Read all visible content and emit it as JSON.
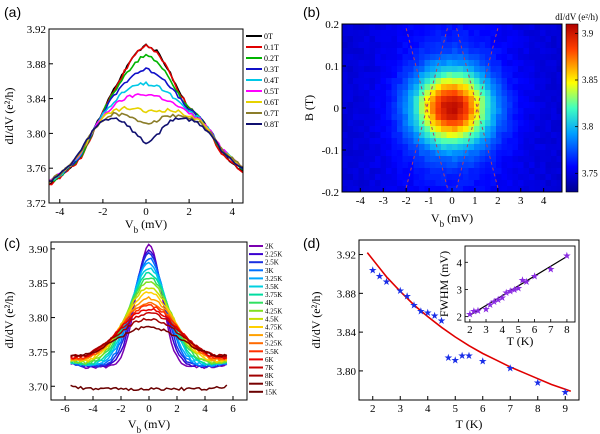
{
  "chart_data": [
    {
      "panel_label": "(a)",
      "type": "line",
      "xlabel_main": "V",
      "xlabel_sub": "b",
      "xlabel_unit": " (mV)",
      "ylabel": "dI/dV (e²/h)",
      "xlim": [
        -4.5,
        4.5
      ],
      "ylim": [
        3.72,
        3.92
      ],
      "xticks": [
        "-4",
        "-2",
        "0",
        "2",
        "4"
      ],
      "yticks": [
        "3.72",
        "3.76",
        "3.80",
        "3.84",
        "3.88",
        "3.92"
      ],
      "x": [
        -4.5,
        -4.0,
        -3.5,
        -3.0,
        -2.5,
        -2.0,
        -1.5,
        -1.0,
        -0.5,
        0.0,
        0.5,
        1.0,
        1.5,
        2.0,
        2.5,
        3.0,
        3.5,
        4.0,
        4.5
      ],
      "series": [
        {
          "name": "0T",
          "color": "#000000",
          "values": [
            3.742,
            3.75,
            3.761,
            3.773,
            3.8,
            3.826,
            3.85,
            3.872,
            3.892,
            3.903,
            3.894,
            3.875,
            3.85,
            3.829,
            3.818,
            3.8,
            3.778,
            3.767,
            3.756
          ]
        },
        {
          "name": "0.1T",
          "color": "#e00000",
          "values": [
            3.741,
            3.749,
            3.76,
            3.772,
            3.799,
            3.825,
            3.849,
            3.871,
            3.891,
            3.902,
            3.893,
            3.874,
            3.849,
            3.828,
            3.817,
            3.799,
            3.777,
            3.766,
            3.755
          ]
        },
        {
          "name": "0.2T",
          "color": "#00b400",
          "values": [
            3.743,
            3.751,
            3.762,
            3.774,
            3.8,
            3.825,
            3.847,
            3.866,
            3.882,
            3.89,
            3.883,
            3.867,
            3.846,
            3.828,
            3.818,
            3.801,
            3.78,
            3.769,
            3.758
          ]
        },
        {
          "name": "0.3T",
          "color": "#1010c8",
          "values": [
            3.744,
            3.752,
            3.763,
            3.776,
            3.801,
            3.824,
            3.843,
            3.858,
            3.869,
            3.874,
            3.869,
            3.858,
            3.842,
            3.827,
            3.818,
            3.802,
            3.781,
            3.77,
            3.759
          ]
        },
        {
          "name": "0.4T",
          "color": "#00c8e6",
          "values": [
            3.744,
            3.752,
            3.763,
            3.777,
            3.801,
            3.822,
            3.837,
            3.848,
            3.855,
            3.857,
            3.854,
            3.847,
            3.836,
            3.825,
            3.817,
            3.802,
            3.782,
            3.771,
            3.76
          ]
        },
        {
          "name": "0.5T",
          "color": "#ff00ff",
          "values": [
            3.745,
            3.753,
            3.764,
            3.778,
            3.801,
            3.82,
            3.832,
            3.84,
            3.844,
            3.845,
            3.843,
            3.838,
            3.831,
            3.823,
            3.816,
            3.802,
            3.782,
            3.771,
            3.761
          ]
        },
        {
          "name": "0.6T",
          "color": "#e6d200",
          "values": [
            3.745,
            3.753,
            3.764,
            3.779,
            3.801,
            3.818,
            3.826,
            3.829,
            3.828,
            3.825,
            3.826,
            3.827,
            3.825,
            3.82,
            3.814,
            3.801,
            3.782,
            3.771,
            3.761
          ]
        },
        {
          "name": "0.7T",
          "color": "#8b7d2a",
          "values": [
            3.745,
            3.753,
            3.764,
            3.78,
            3.801,
            3.816,
            3.822,
            3.821,
            3.816,
            3.812,
            3.815,
            3.82,
            3.821,
            3.818,
            3.812,
            3.8,
            3.782,
            3.771,
            3.761
          ]
        },
        {
          "name": "0.8T",
          "color": "#101070",
          "values": [
            3.745,
            3.753,
            3.764,
            3.781,
            3.802,
            3.815,
            3.818,
            3.813,
            3.8,
            3.788,
            3.798,
            3.812,
            3.818,
            3.816,
            3.811,
            3.799,
            3.781,
            3.77,
            3.76
          ]
        }
      ]
    },
    {
      "panel_label": "(b)",
      "type": "heatmap",
      "xlabel_main": "V",
      "xlabel_sub": "b",
      "xlabel_unit": " (mV)",
      "ylabel": "B (T)",
      "xlim": [
        -4.8,
        4.8
      ],
      "ylim": [
        -0.2,
        0.2
      ],
      "xticks": [
        "-4",
        "-3",
        "-2",
        "-1",
        "0",
        "1",
        "2",
        "3",
        "4"
      ],
      "yticks": [
        "-0.2",
        "-0.1",
        "0",
        "0.1",
        "0.2"
      ],
      "colorbar_title": "dI/dV (e²/h)",
      "colorbar_ticks": [
        "3.75",
        "3.8",
        "3.85",
        "3.9"
      ],
      "colorbar_range": [
        3.73,
        3.91
      ],
      "peak_value": 3.905,
      "background_value": 3.745,
      "guide_lines": [
        {
          "from": [
            -0.2,
            0.19
          ],
          "to": [
            -2.0,
            -0.19
          ]
        },
        {
          "from": [
            0.2,
            0.19
          ],
          "to": [
            2.0,
            -0.19
          ]
        },
        {
          "from": [
            -2.0,
            0.19
          ],
          "to": [
            -0.2,
            -0.19
          ]
        },
        {
          "from": [
            2.0,
            0.19
          ],
          "to": [
            0.2,
            -0.19
          ]
        }
      ]
    },
    {
      "panel_label": "(c)",
      "type": "line",
      "xlabel_main": "V",
      "xlabel_sub": "b",
      "xlabel_unit": " (mV)",
      "ylabel": "dI/dV (e²/h)",
      "xlim": [
        -7,
        7
      ],
      "ylim": [
        3.68,
        3.91
      ],
      "xticks": [
        "-6",
        "-4",
        "-2",
        "0",
        "2",
        "4",
        "6"
      ],
      "yticks": [
        "3.70",
        "3.75",
        "3.80",
        "3.85",
        "3.90"
      ],
      "series": [
        {
          "name": "2K",
          "color": "#7a00b0",
          "peak": 3.905,
          "base": 3.728
        },
        {
          "name": "2.25K",
          "color": "#3a00d0",
          "peak": 3.899,
          "base": 3.729
        },
        {
          "name": "2.5K",
          "color": "#1a30e0",
          "peak": 3.893,
          "base": 3.729
        },
        {
          "name": "3K",
          "color": "#0070ff",
          "peak": 3.886,
          "base": 3.73
        },
        {
          "name": "3.25K",
          "color": "#00a8ff",
          "peak": 3.879,
          "base": 3.73
        },
        {
          "name": "3.5K",
          "color": "#00d0e0",
          "peak": 3.872,
          "base": 3.731
        },
        {
          "name": "3.75K",
          "color": "#00dca0",
          "peak": 3.865,
          "base": 3.731
        },
        {
          "name": "4K",
          "color": "#30e060",
          "peak": 3.858,
          "base": 3.732
        },
        {
          "name": "4.25K",
          "color": "#80e020",
          "peak": 3.851,
          "base": 3.732
        },
        {
          "name": "4.5K",
          "color": "#c8e000",
          "peak": 3.844,
          "base": 3.733
        },
        {
          "name": "4.75K",
          "color": "#ffd000",
          "peak": 3.836,
          "base": 3.733
        },
        {
          "name": "5K",
          "color": "#ffa000",
          "peak": 3.828,
          "base": 3.734
        },
        {
          "name": "5.25K",
          "color": "#ff6a00",
          "peak": 3.822,
          "base": 3.734
        },
        {
          "name": "5.5K",
          "color": "#ff3000",
          "peak": 3.817,
          "base": 3.735
        },
        {
          "name": "6K",
          "color": "#e80000",
          "peak": 3.812,
          "base": 3.735
        },
        {
          "name": "7K",
          "color": "#c80000",
          "peak": 3.806,
          "base": 3.736
        },
        {
          "name": "8K",
          "color": "#a00000",
          "peak": 3.798,
          "base": 3.736
        },
        {
          "name": "9K",
          "color": "#780000",
          "peak": 3.786,
          "base": 3.737
        },
        {
          "name": "15K",
          "color": "#6a0000",
          "peak": 3.696,
          "base": 3.696
        }
      ]
    },
    {
      "panel_label": "(d)",
      "type": "scatter",
      "xlabel": "T (K)",
      "ylabel": "dI/dV (e²/h)",
      "xlim": [
        1.5,
        9.5
      ],
      "ylim": [
        3.77,
        3.935
      ],
      "xticks": [
        "2",
        "3",
        "4",
        "5",
        "6",
        "7",
        "8",
        "9"
      ],
      "yticks": [
        "3.80",
        "3.84",
        "3.88",
        "3.92"
      ],
      "points": {
        "x": [
          2.0,
          2.25,
          2.5,
          3.0,
          3.25,
          3.5,
          3.75,
          4.0,
          4.25,
          4.5,
          4.75,
          5.0,
          5.25,
          5.5,
          6.0,
          7.0,
          8.0,
          9.0
        ],
        "y": [
          3.904,
          3.898,
          3.892,
          3.883,
          3.877,
          3.868,
          3.862,
          3.86,
          3.857,
          3.852,
          3.814,
          3.811,
          3.816,
          3.816,
          3.81,
          3.803,
          3.788,
          3.778
        ]
      },
      "fit_curve": {
        "x": [
          1.8,
          2.5,
          3.0,
          3.5,
          4.0,
          4.5,
          5.0,
          5.5,
          6.0,
          6.5,
          7.0,
          7.5,
          8.0,
          8.5,
          9.0,
          9.2
        ],
        "y": [
          3.922,
          3.897,
          3.882,
          3.868,
          3.856,
          3.845,
          3.835,
          3.826,
          3.818,
          3.811,
          3.804,
          3.798,
          3.792,
          3.786,
          3.781,
          3.779
        ]
      },
      "inset": {
        "xlabel": "T (K)",
        "ylabel": "FWHM (mV)",
        "xlim": [
          1.7,
          8.5
        ],
        "ylim": [
          1.8,
          4.6
        ],
        "xticks": [
          "2",
          "3",
          "4",
          "5",
          "6",
          "7",
          "8"
        ],
        "yticks": [
          "2",
          "3",
          "4"
        ],
        "points": {
          "x": [
            2.0,
            2.25,
            2.5,
            3.0,
            3.25,
            3.5,
            3.75,
            4.0,
            4.25,
            4.5,
            4.75,
            5.0,
            5.25,
            5.5,
            6.0,
            7.0,
            8.0
          ],
          "y": [
            2.1,
            2.2,
            2.22,
            2.28,
            2.45,
            2.55,
            2.62,
            2.7,
            2.88,
            2.95,
            3.0,
            3.05,
            3.35,
            3.3,
            3.5,
            3.75,
            4.25
          ]
        },
        "fit_line": {
          "x": [
            2.0,
            8.1
          ],
          "y": [
            2.05,
            4.25
          ]
        }
      }
    }
  ]
}
